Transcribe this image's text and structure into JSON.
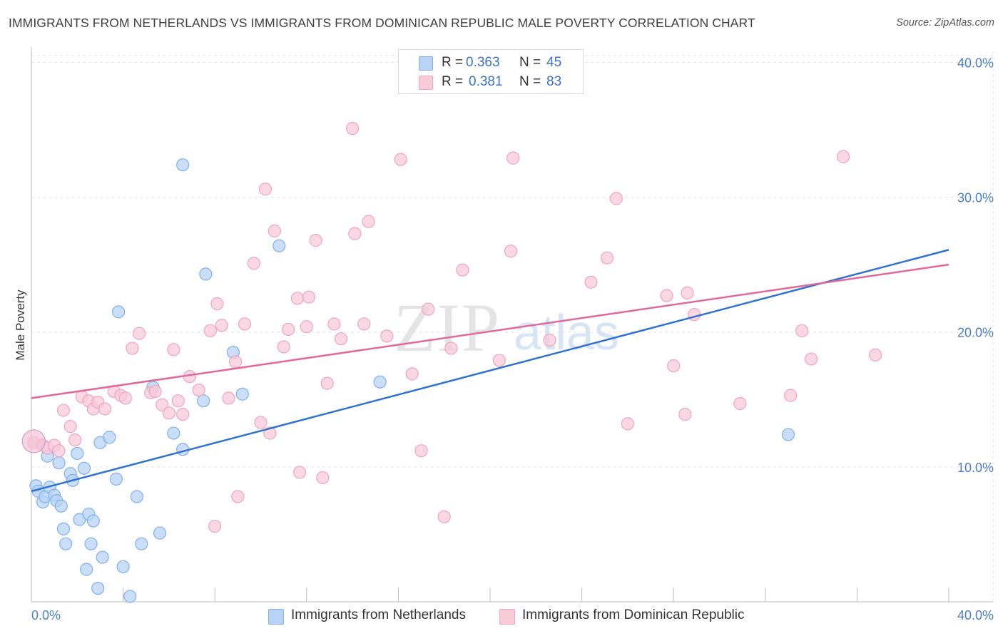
{
  "title": "IMMIGRANTS FROM NETHERLANDS VS IMMIGRANTS FROM DOMINICAN REPUBLIC MALE POVERTY CORRELATION CHART",
  "source": "Source: ZipAtlas.com",
  "watermark": {
    "zip": "ZIP",
    "atlas": "atlas"
  },
  "legend": {
    "r_label": "R =",
    "n_label": "N =",
    "entries": [
      {
        "r": "0.363",
        "n": "45"
      },
      {
        "r": "0.381",
        "n": "83"
      }
    ]
  },
  "chart_data": {
    "type": "scatter",
    "title": "IMMIGRANTS FROM NETHERLANDS VS IMMIGRANTS FROM DOMINICAN REPUBLIC MALE POVERTY CORRELATION CHART",
    "xlabel": "",
    "ylabel": "Male Poverty",
    "xlim": [
      0,
      40
    ],
    "ylim": [
      0,
      40.5
    ],
    "x_tick_labels": [
      "0.0%",
      "40.0%"
    ],
    "y_ticks": [
      {
        "value": 10,
        "label": "10.0%"
      },
      {
        "value": 20,
        "label": "20.0%"
      },
      {
        "value": 30,
        "label": "30.0%"
      },
      {
        "value": 40,
        "label": "40.0%"
      }
    ],
    "series": [
      {
        "name": "Immigrants from Netherlands",
        "color": "#7fb0ea",
        "fill": "#b8d3f5",
        "line_color": "#2f72d0",
        "trend": {
          "x": [
            0,
            40
          ],
          "y": [
            8.2,
            26.1
          ]
        },
        "points": [
          [
            0.2,
            8.6
          ],
          [
            0.3,
            8.2
          ],
          [
            0.5,
            7.4
          ],
          [
            0.6,
            7.8
          ],
          [
            0.7,
            10.8
          ],
          [
            0.8,
            8.5
          ],
          [
            1.0,
            7.9
          ],
          [
            1.1,
            7.5
          ],
          [
            1.2,
            10.3
          ],
          [
            1.3,
            7.1
          ],
          [
            1.4,
            5.4
          ],
          [
            1.5,
            4.3
          ],
          [
            1.7,
            9.5
          ],
          [
            1.8,
            9.0
          ],
          [
            2.0,
            11.0
          ],
          [
            2.1,
            6.1
          ],
          [
            2.3,
            9.9
          ],
          [
            2.4,
            2.4
          ],
          [
            2.5,
            6.5
          ],
          [
            2.6,
            4.3
          ],
          [
            2.7,
            6.0
          ],
          [
            2.9,
            1.0
          ],
          [
            3.0,
            11.8
          ],
          [
            3.1,
            3.3
          ],
          [
            3.4,
            12.2
          ],
          [
            3.7,
            9.1
          ],
          [
            3.8,
            21.5
          ],
          [
            4.0,
            2.6
          ],
          [
            4.3,
            0.4
          ],
          [
            4.6,
            7.8
          ],
          [
            4.8,
            4.3
          ],
          [
            5.3,
            15.9
          ],
          [
            5.6,
            5.1
          ],
          [
            6.2,
            12.5
          ],
          [
            6.6,
            32.4
          ],
          [
            6.6,
            11.3
          ],
          [
            7.5,
            14.9
          ],
          [
            7.6,
            24.3
          ],
          [
            8.8,
            18.5
          ],
          [
            9.2,
            15.4
          ],
          [
            10.8,
            26.4
          ],
          [
            15.2,
            16.3
          ],
          [
            33.0,
            12.4
          ]
        ]
      },
      {
        "name": "Immigrants from Dominican Republic",
        "color": "#f0a3bd",
        "fill": "#f8cbd9",
        "line_color": "#e0699a",
        "trend": {
          "x": [
            0,
            40
          ],
          "y": [
            15.1,
            25.0
          ]
        },
        "points": [
          [
            0.1,
            11.8
          ],
          [
            0.5,
            11.6
          ],
          [
            0.7,
            11.4
          ],
          [
            1.0,
            11.6
          ],
          [
            1.2,
            11.2
          ],
          [
            1.4,
            14.2
          ],
          [
            1.7,
            13.0
          ],
          [
            1.9,
            12.0
          ],
          [
            2.2,
            15.2
          ],
          [
            2.5,
            14.9
          ],
          [
            2.7,
            14.3
          ],
          [
            2.9,
            14.8
          ],
          [
            3.2,
            14.3
          ],
          [
            3.6,
            15.6
          ],
          [
            3.9,
            15.3
          ],
          [
            4.1,
            15.1
          ],
          [
            4.4,
            18.8
          ],
          [
            4.7,
            19.9
          ],
          [
            5.2,
            15.5
          ],
          [
            5.4,
            15.6
          ],
          [
            5.7,
            14.6
          ],
          [
            6.0,
            14.0
          ],
          [
            6.2,
            18.7
          ],
          [
            6.4,
            14.9
          ],
          [
            6.6,
            13.9
          ],
          [
            6.9,
            16.7
          ],
          [
            7.3,
            15.7
          ],
          [
            7.8,
            20.1
          ],
          [
            8.0,
            5.6
          ],
          [
            8.1,
            22.1
          ],
          [
            8.3,
            20.5
          ],
          [
            8.6,
            15.1
          ],
          [
            8.9,
            17.8
          ],
          [
            9.0,
            7.8
          ],
          [
            9.3,
            20.6
          ],
          [
            9.7,
            25.1
          ],
          [
            10.0,
            13.3
          ],
          [
            10.2,
            30.6
          ],
          [
            10.4,
            12.5
          ],
          [
            10.6,
            27.5
          ],
          [
            11.0,
            18.9
          ],
          [
            11.2,
            20.2
          ],
          [
            11.6,
            22.5
          ],
          [
            11.7,
            9.6
          ],
          [
            12.0,
            20.4
          ],
          [
            12.1,
            22.6
          ],
          [
            12.4,
            26.8
          ],
          [
            12.7,
            9.2
          ],
          [
            12.9,
            16.2
          ],
          [
            13.2,
            20.6
          ],
          [
            13.5,
            19.5
          ],
          [
            14.0,
            35.1
          ],
          [
            14.1,
            27.3
          ],
          [
            14.5,
            20.6
          ],
          [
            14.7,
            28.2
          ],
          [
            15.5,
            19.7
          ],
          [
            16.1,
            32.8
          ],
          [
            16.6,
            16.9
          ],
          [
            17.0,
            11.2
          ],
          [
            17.3,
            21.7
          ],
          [
            18.0,
            6.3
          ],
          [
            18.3,
            18.8
          ],
          [
            18.8,
            24.6
          ],
          [
            20.4,
            17.9
          ],
          [
            20.9,
            26.0
          ],
          [
            21.0,
            32.9
          ],
          [
            22.6,
            19.4
          ],
          [
            24.4,
            23.7
          ],
          [
            25.1,
            25.5
          ],
          [
            25.5,
            29.9
          ],
          [
            26.0,
            13.2
          ],
          [
            27.7,
            22.7
          ],
          [
            28.0,
            17.5
          ],
          [
            28.5,
            13.9
          ],
          [
            28.6,
            22.9
          ],
          [
            28.9,
            21.3
          ],
          [
            30.9,
            14.7
          ],
          [
            33.1,
            15.3
          ],
          [
            33.6,
            20.1
          ],
          [
            34.0,
            18.0
          ],
          [
            35.4,
            33.0
          ],
          [
            36.8,
            18.3
          ]
        ]
      }
    ]
  }
}
